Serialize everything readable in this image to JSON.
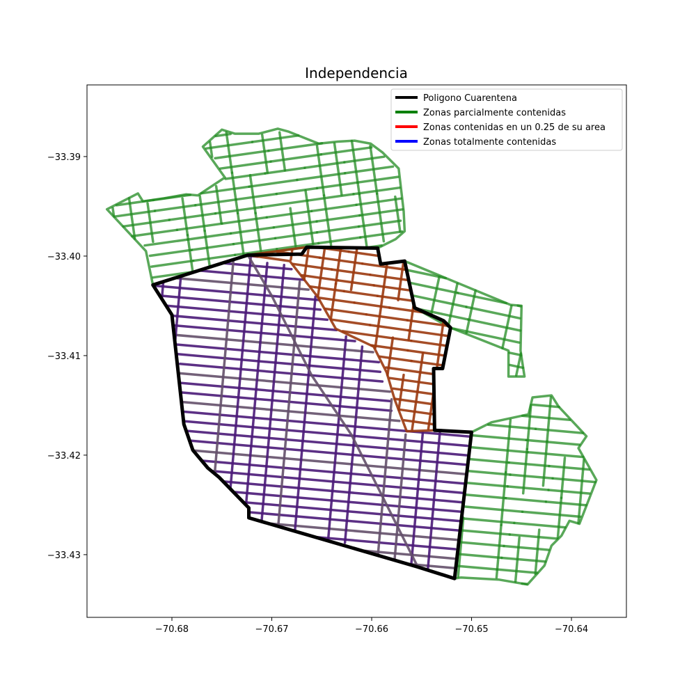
{
  "chart_data": {
    "type": "map",
    "title": "Independencia",
    "xlim": [
      -70.6885,
      -70.6345
    ],
    "ylim": [
      -33.4363,
      -33.3828
    ],
    "x_ticks": [
      {
        "value": -70.68,
        "label": "−70.68"
      },
      {
        "value": -70.67,
        "label": "−70.67"
      },
      {
        "value": -70.66,
        "label": "−70.66"
      },
      {
        "value": -70.65,
        "label": "−70.65"
      },
      {
        "value": -70.64,
        "label": "−70.64"
      }
    ],
    "y_ticks": [
      {
        "value": -33.39,
        "label": "−33.39"
      },
      {
        "value": -33.4,
        "label": "−33.40"
      },
      {
        "value": -33.41,
        "label": "−33.41"
      },
      {
        "value": -33.42,
        "label": "−33.42"
      },
      {
        "value": -33.43,
        "label": "−33.43"
      }
    ],
    "legend": {
      "placement": "top-right",
      "entries": [
        {
          "label": "Poligono Cuarentena",
          "color": "#000000"
        },
        {
          "label": "Zonas parcialmente contenidas",
          "color": "#008000"
        },
        {
          "label": "Zonas contenidas en un 0.25 de su area",
          "color": "#ff0000"
        },
        {
          "label": "Zonas totalmente contenidas",
          "color": "#0000ff"
        }
      ]
    },
    "quarantine_polygon": [
      [
        -70.6819,
        -33.4029
      ],
      [
        -70.68,
        -33.4059
      ],
      [
        -70.6788,
        -33.4169
      ],
      [
        -70.6779,
        -33.4195
      ],
      [
        -70.6764,
        -33.4213
      ],
      [
        -70.6753,
        -33.4222
      ],
      [
        -70.6723,
        -33.4253
      ],
      [
        -70.6723,
        -33.4263
      ],
      [
        -70.6555,
        -33.4312
      ],
      [
        -70.6517,
        -33.4324
      ],
      [
        -70.65,
        -33.4177
      ],
      [
        -70.6537,
        -33.4175
      ],
      [
        -70.6538,
        -33.4113
      ],
      [
        -70.6529,
        -33.4113
      ],
      [
        -70.6521,
        -33.4072
      ],
      [
        -70.6528,
        -33.4065
      ],
      [
        -70.6557,
        -33.4052
      ],
      [
        -70.6567,
        -33.4005
      ],
      [
        -70.6591,
        -33.4008
      ],
      [
        -70.6594,
        -33.3992
      ],
      [
        -70.6665,
        -33.3991
      ],
      [
        -70.667,
        -33.3998
      ],
      [
        -70.6724,
        -33.3999
      ],
      [
        -70.6819,
        -33.4029
      ]
    ],
    "zone_colors": {
      "partial": "#228b22",
      "partial_light": "#5daf5d",
      "quarter": "#9b3a10",
      "total": "#4a1a78",
      "total_muted": "#64506a"
    },
    "zones": {
      "partial_nw_outline": [
        [
          -70.6865,
          -33.3953
        ],
        [
          -70.6834,
          -33.3937
        ],
        [
          -70.6829,
          -33.3945
        ],
        [
          -70.6808,
          -33.3942
        ],
        [
          -70.6786,
          -33.3938
        ],
        [
          -70.6774,
          -33.3939
        ],
        [
          -70.6747,
          -33.3921
        ],
        [
          -70.6769,
          -33.389
        ],
        [
          -70.675,
          -33.3873
        ],
        [
          -70.6737,
          -33.3877
        ],
        [
          -70.6713,
          -33.3877
        ],
        [
          -70.6694,
          -33.3872
        ],
        [
          -70.6683,
          -33.3875
        ],
        [
          -70.6653,
          -33.3887
        ],
        [
          -70.6634,
          -33.3885
        ],
        [
          -70.6617,
          -33.3884
        ],
        [
          -70.6601,
          -33.3887
        ],
        [
          -70.6589,
          -33.3896
        ],
        [
          -70.6573,
          -33.3912
        ],
        [
          -70.6568,
          -33.3955
        ],
        [
          -70.6567,
          -33.3975
        ],
        [
          -70.6576,
          -33.3983
        ],
        [
          -70.6594,
          -33.3992
        ],
        [
          -70.6665,
          -33.3991
        ],
        [
          -70.6724,
          -33.3999
        ],
        [
          -70.6819,
          -33.4029
        ],
        [
          -70.6826,
          -33.3995
        ],
        [
          -70.6865,
          -33.3953
        ]
      ],
      "partial_east_outline": [
        [
          -70.6567,
          -33.4005
        ],
        [
          -70.6461,
          -33.4049
        ],
        [
          -70.645,
          -33.405
        ],
        [
          -70.6451,
          -33.4095
        ],
        [
          -70.6447,
          -33.4121
        ],
        [
          -70.6463,
          -33.4121
        ],
        [
          -70.6463,
          -33.4095
        ],
        [
          -70.6521,
          -33.4072
        ],
        [
          -70.6557,
          -33.4052
        ],
        [
          -70.6567,
          -33.4005
        ]
      ],
      "partial_se_outline": [
        [
          -70.65,
          -33.4177
        ],
        [
          -70.648,
          -33.4167
        ],
        [
          -70.6443,
          -33.4159
        ],
        [
          -70.6439,
          -33.4142
        ],
        [
          -70.642,
          -33.414
        ],
        [
          -70.6413,
          -33.4151
        ],
        [
          -70.6385,
          -33.4181
        ],
        [
          -70.6393,
          -33.4193
        ],
        [
          -70.6375,
          -33.4225
        ],
        [
          -70.6392,
          -33.4269
        ],
        [
          -70.6402,
          -33.4266
        ],
        [
          -70.641,
          -33.4281
        ],
        [
          -70.642,
          -33.4291
        ],
        [
          -70.6427,
          -33.4311
        ],
        [
          -70.6444,
          -33.433
        ],
        [
          -70.6473,
          -33.4325
        ],
        [
          -70.6511,
          -33.4323
        ],
        [
          -70.6517,
          -33.4324
        ],
        [
          -70.65,
          -33.4177
        ]
      ],
      "quarter_outline": [
        [
          -70.6594,
          -33.3992
        ],
        [
          -70.6665,
          -33.3991
        ],
        [
          -70.6724,
          -33.3999
        ],
        [
          -70.6682,
          -33.4005
        ],
        [
          -70.6654,
          -33.4041
        ],
        [
          -70.6636,
          -33.4073
        ],
        [
          -70.6598,
          -33.4091
        ],
        [
          -70.6585,
          -33.4117
        ],
        [
          -70.6577,
          -33.4144
        ],
        [
          -70.6565,
          -33.4176
        ],
        [
          -70.6537,
          -33.4175
        ],
        [
          -70.6538,
          -33.4113
        ],
        [
          -70.6529,
          -33.4113
        ],
        [
          -70.6521,
          -33.4072
        ],
        [
          -70.6528,
          -33.4065
        ],
        [
          -70.6557,
          -33.4052
        ],
        [
          -70.6567,
          -33.4005
        ],
        [
          -70.6591,
          -33.4008
        ],
        [
          -70.6594,
          -33.3992
        ]
      ]
    }
  }
}
